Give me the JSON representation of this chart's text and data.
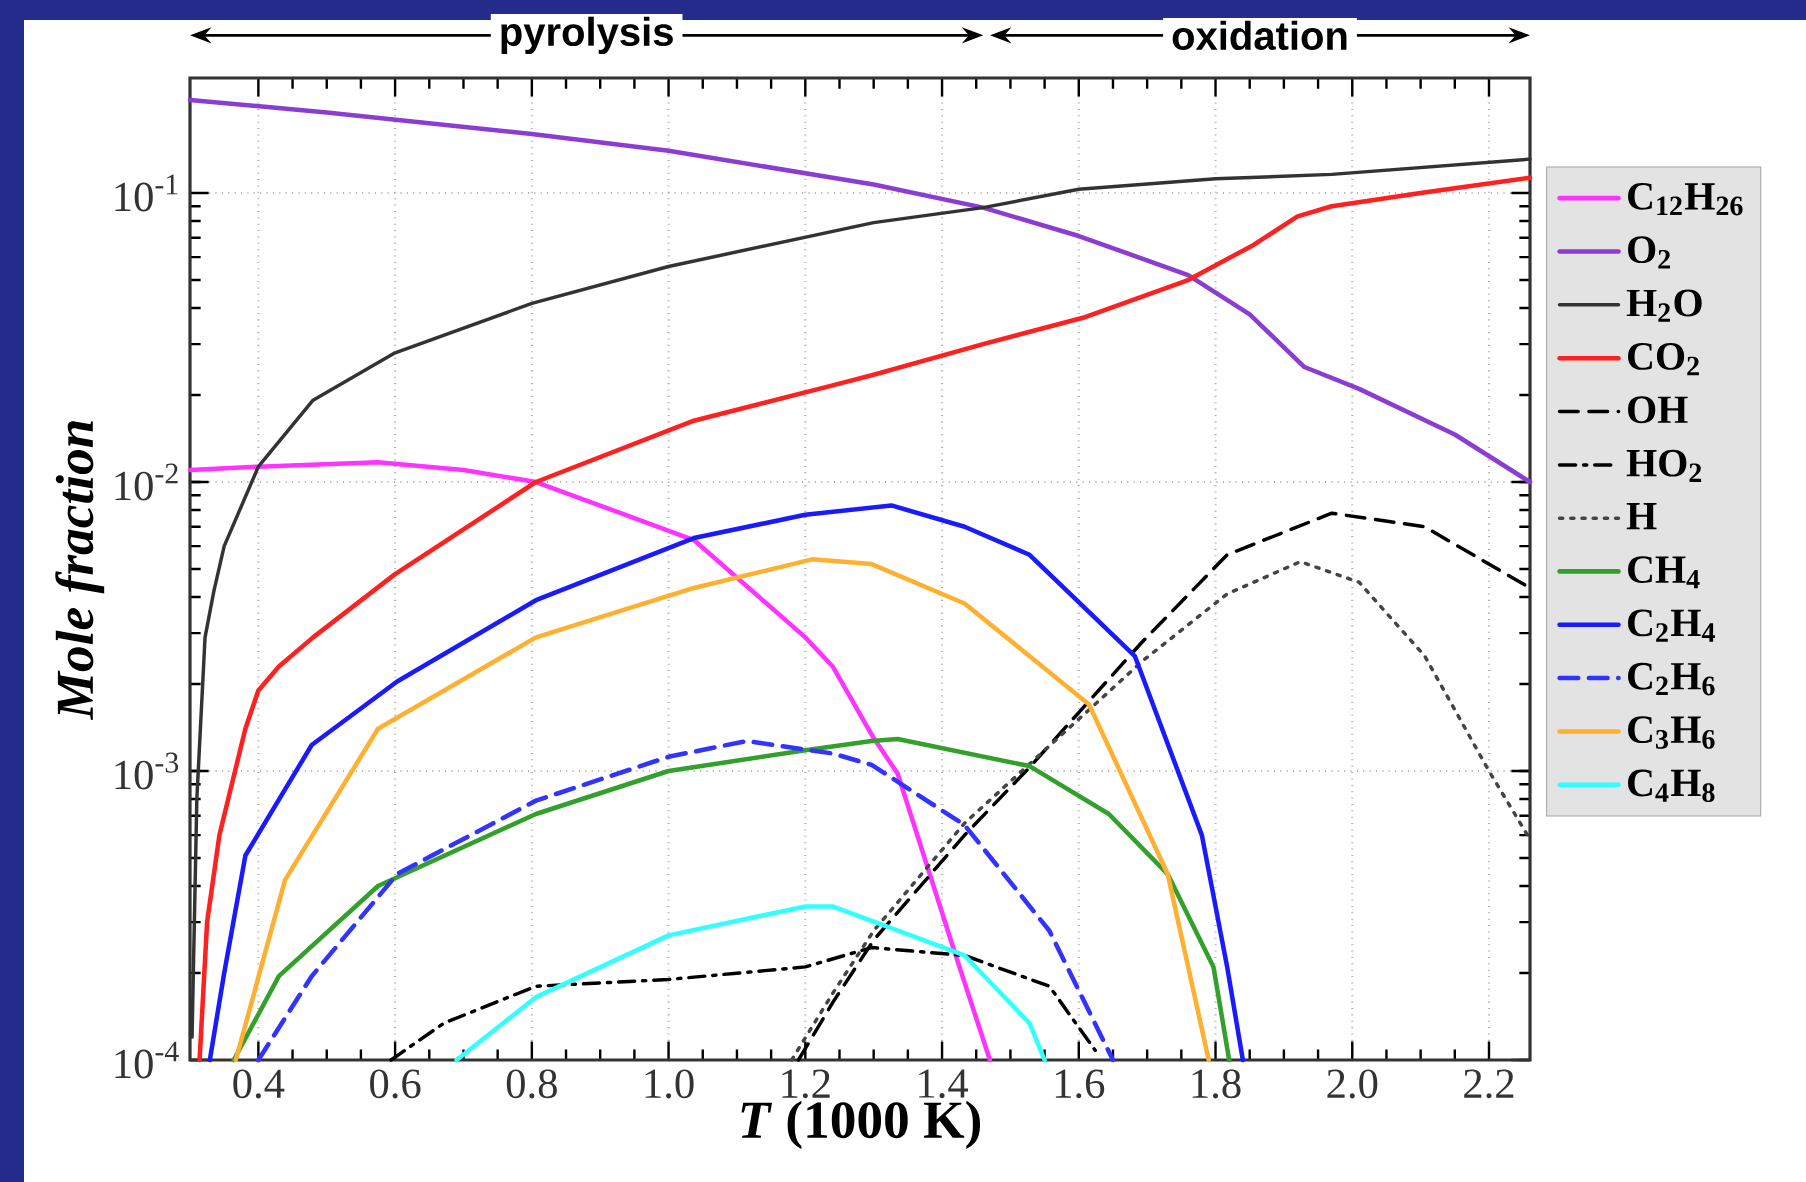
{
  "chart_data": {
    "type": "line",
    "xlabel": "*T* (1000 K)",
    "ylabel": "Mole fraction",
    "xlim": [
      0.3,
      2.26
    ],
    "ylim": [
      0.0001,
      0.25
    ],
    "log": "y",
    "grid": true,
    "legend": "right",
    "xticks": [
      0.4,
      0.6,
      0.8,
      {
        "value": 1.0,
        "label": "1.0"
      },
      1.2,
      1.4,
      1.6,
      1.8,
      {
        "value": 2.0,
        "label": "2.0"
      },
      2.2
    ],
    "yticks": [
      {
        "value": 0.0001,
        "label": "10$^{-4}$"
      },
      {
        "value": 0.001,
        "label": "10$^{-3}$"
      },
      {
        "value": 0.01,
        "label": "10$^{-2}$"
      },
      {
        "value": 0.1,
        "label": "10$^{-1}$"
      }
    ],
    "annotations": [
      "pyrolysis",
      "oxidation"
    ],
    "series": [
      {
        "name": "C$_{12}$H$_{26}$",
        "color": "#ff33ff",
        "line_style": "solid",
        "x": [
          0.3,
          0.4,
          0.575,
          0.7,
          0.806,
          0.93,
          1.037,
          1.2,
          1.24,
          1.3,
          1.335,
          1.42,
          1.47
        ],
        "values": [
          0.011,
          0.0113,
          0.0117,
          0.011,
          0.01,
          0.0078,
          0.0063,
          0.0029,
          0.0023,
          0.0013,
          0.00098,
          0.00023,
          0.0001
        ]
      },
      {
        "name": "O$_{2}$",
        "color": "#8a3dd0",
        "line_style": "solid",
        "x": [
          0.3,
          0.5,
          0.8,
          1.0,
          1.3,
          1.46,
          1.6,
          1.76,
          1.85,
          1.93,
          2.01,
          2.15,
          2.26
        ],
        "values": [
          0.21,
          0.19,
          0.16,
          0.14,
          0.107,
          0.089,
          0.071,
          0.052,
          0.038,
          0.025,
          0.021,
          0.0146,
          0.01
        ]
      },
      {
        "name": "H$_{2}$O",
        "color": "#333333",
        "line_style": "solid",
        "x": [
          0.303,
          0.31,
          0.322,
          0.335,
          0.35,
          0.4,
          0.48,
          0.6,
          0.8,
          1.0,
          1.3,
          1.46,
          1.6,
          1.8,
          1.97,
          2.26
        ],
        "values": [
          0.00012,
          0.0008,
          0.0029,
          0.0042,
          0.006,
          0.0113,
          0.0192,
          0.028,
          0.0415,
          0.0557,
          0.079,
          0.089,
          0.103,
          0.112,
          0.116,
          0.131
        ]
      },
      {
        "name": "CO$_{2}$",
        "color": "#ff2020",
        "line_style": "solid",
        "x": [
          0.314,
          0.325,
          0.343,
          0.381,
          0.4,
          0.43,
          0.48,
          0.6,
          0.806,
          1.037,
          1.24,
          1.3,
          1.46,
          1.606,
          1.76,
          1.855,
          1.92,
          1.97,
          2.1,
          2.26
        ],
        "values": [
          0.0001,
          0.0003,
          0.0006,
          0.0014,
          0.0019,
          0.0023,
          0.0029,
          0.0048,
          0.01,
          0.0163,
          0.0216,
          0.0235,
          0.03,
          0.037,
          0.05,
          0.066,
          0.083,
          0.09,
          0.1,
          0.113
        ]
      },
      {
        "name": "OH",
        "color": "#000000",
        "line_style": "dashed",
        "x": [
          1.19,
          1.24,
          1.3,
          1.433,
          1.528,
          1.693,
          1.817,
          1.97,
          2.106,
          2.26
        ],
        "values": [
          0.0001,
          0.000158,
          0.00026,
          0.0006,
          0.00103,
          0.0028,
          0.0056,
          0.0078,
          0.007,
          0.0043
        ]
      },
      {
        "name": "HO$_{2}$",
        "color": "#000000",
        "line_style": "dashdot",
        "x": [
          0.594,
          0.671,
          0.806,
          1.0,
          1.2,
          1.297,
          1.433,
          1.557,
          1.624
        ],
        "values": [
          0.0001,
          0.000134,
          0.00018,
          0.00019,
          0.00021,
          0.000245,
          0.00023,
          0.00018,
          0.000108
        ]
      },
      {
        "name": "H",
        "color": "#444444",
        "line_style": "dotted",
        "x": [
          1.18,
          1.24,
          1.3,
          1.433,
          1.693,
          1.817,
          1.924,
          2.01,
          2.106,
          2.2,
          2.26
        ],
        "values": [
          0.0001,
          0.00017,
          0.00028,
          0.00066,
          0.0024,
          0.0041,
          0.0053,
          0.0045,
          0.0025,
          0.001,
          0.00058
        ]
      },
      {
        "name": "CH$_{4}$",
        "color": "#33a02c",
        "line_style": "solid",
        "x": [
          0.364,
          0.43,
          0.575,
          0.806,
          1.0,
          1.2,
          1.297,
          1.335,
          1.528,
          1.644,
          1.73,
          1.797,
          1.82
        ],
        "values": [
          0.0001,
          0.000195,
          0.0004,
          0.00071,
          0.001,
          0.00118,
          0.00127,
          0.00129,
          0.00104,
          0.00071,
          0.00044,
          0.00021,
          0.0001
        ]
      },
      {
        "name": "C$_{2}$H$_{4}$",
        "color": "#1a1aff",
        "line_style": "solid",
        "x": [
          0.329,
          0.35,
          0.381,
          0.478,
          0.603,
          0.806,
          1.037,
          1.2,
          1.326,
          1.433,
          1.528,
          1.682,
          1.78,
          1.817,
          1.84
        ],
        "values": [
          0.0001,
          0.0002,
          0.00051,
          0.00123,
          0.00204,
          0.0039,
          0.0064,
          0.0077,
          0.0083,
          0.007,
          0.0056,
          0.0025,
          0.0006,
          0.00021,
          0.0001
        ]
      },
      {
        "name": "C$_{2}$H$_{6}$",
        "color": "#3333ff",
        "line_style": "dashed",
        "x": [
          0.4,
          0.478,
          0.603,
          0.806,
          1.0,
          1.114,
          1.24,
          1.297,
          1.433,
          1.557,
          1.65
        ],
        "values": [
          0.0001,
          0.000195,
          0.00044,
          0.00079,
          0.00112,
          0.00127,
          0.00115,
          0.00105,
          0.00065,
          0.00028,
          0.0001
        ]
      },
      {
        "name": "C$_{3}$H$_{6}$",
        "color": "#ffb030",
        "line_style": "solid",
        "x": [
          0.367,
          0.439,
          0.575,
          0.806,
          1.037,
          1.21,
          1.297,
          1.433,
          1.615,
          1.73,
          1.79
        ],
        "values": [
          0.0001,
          0.00042,
          0.0014,
          0.0029,
          0.0043,
          0.0054,
          0.0052,
          0.0038,
          0.0017,
          0.00044,
          0.0001
        ]
      },
      {
        "name": "C$_{4}$H$_{8}$",
        "color": "#33ffff",
        "line_style": "solid",
        "x": [
          0.69,
          0.806,
          1.0,
          1.2,
          1.24,
          1.433,
          1.528,
          1.55
        ],
        "values": [
          0.0001,
          0.000165,
          0.00027,
          0.00034,
          0.00034,
          0.00023,
          0.000134,
          0.0001
        ]
      }
    ]
  }
}
